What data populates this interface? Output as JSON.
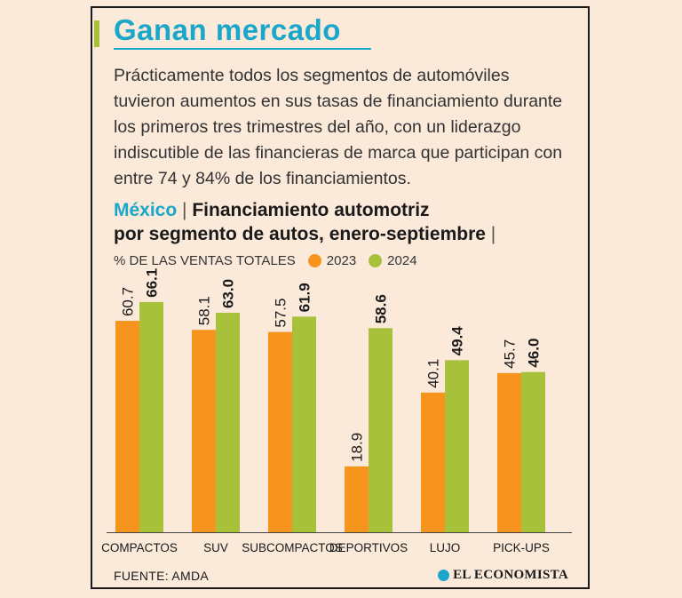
{
  "headline": "Ganan mercado",
  "intro": "Prácticamente todos los segmentos de automóviles tuvieron aumentos en sus tasas de financiamiento durante los primeros tres trimestres del año, con un liderazgo indiscutible de las financieras de marca que participan con entre 74 y 84% de los financiamientos.",
  "chart_title": {
    "country": "México",
    "line1": "Financiamiento automotriz",
    "line2": "por segmento de autos, enero-septiembre"
  },
  "ylabel": "% DE LAS VENTAS TOTALES",
  "source": "FUENTE: AMDA",
  "logo": "EL ECONOMISTA",
  "colors": {
    "2023": "#f7941d",
    "2024": "#a8c13a",
    "accent": "#1ba7c9"
  },
  "chart_data": {
    "type": "bar",
    "categories": [
      "COMPACTOS",
      "SUV",
      "SUBCOMPACTOS",
      "DEPORTIVOS",
      "LUJO",
      "PICK-UPS"
    ],
    "series": [
      {
        "name": "2023",
        "values": [
          60.7,
          58.1,
          57.5,
          18.9,
          40.1,
          45.7
        ]
      },
      {
        "name": "2024",
        "values": [
          66.1,
          63.0,
          61.9,
          58.6,
          49.4,
          46.0
        ]
      }
    ],
    "ylim": [
      0,
      100
    ],
    "legend": "top-left",
    "grid": false
  }
}
